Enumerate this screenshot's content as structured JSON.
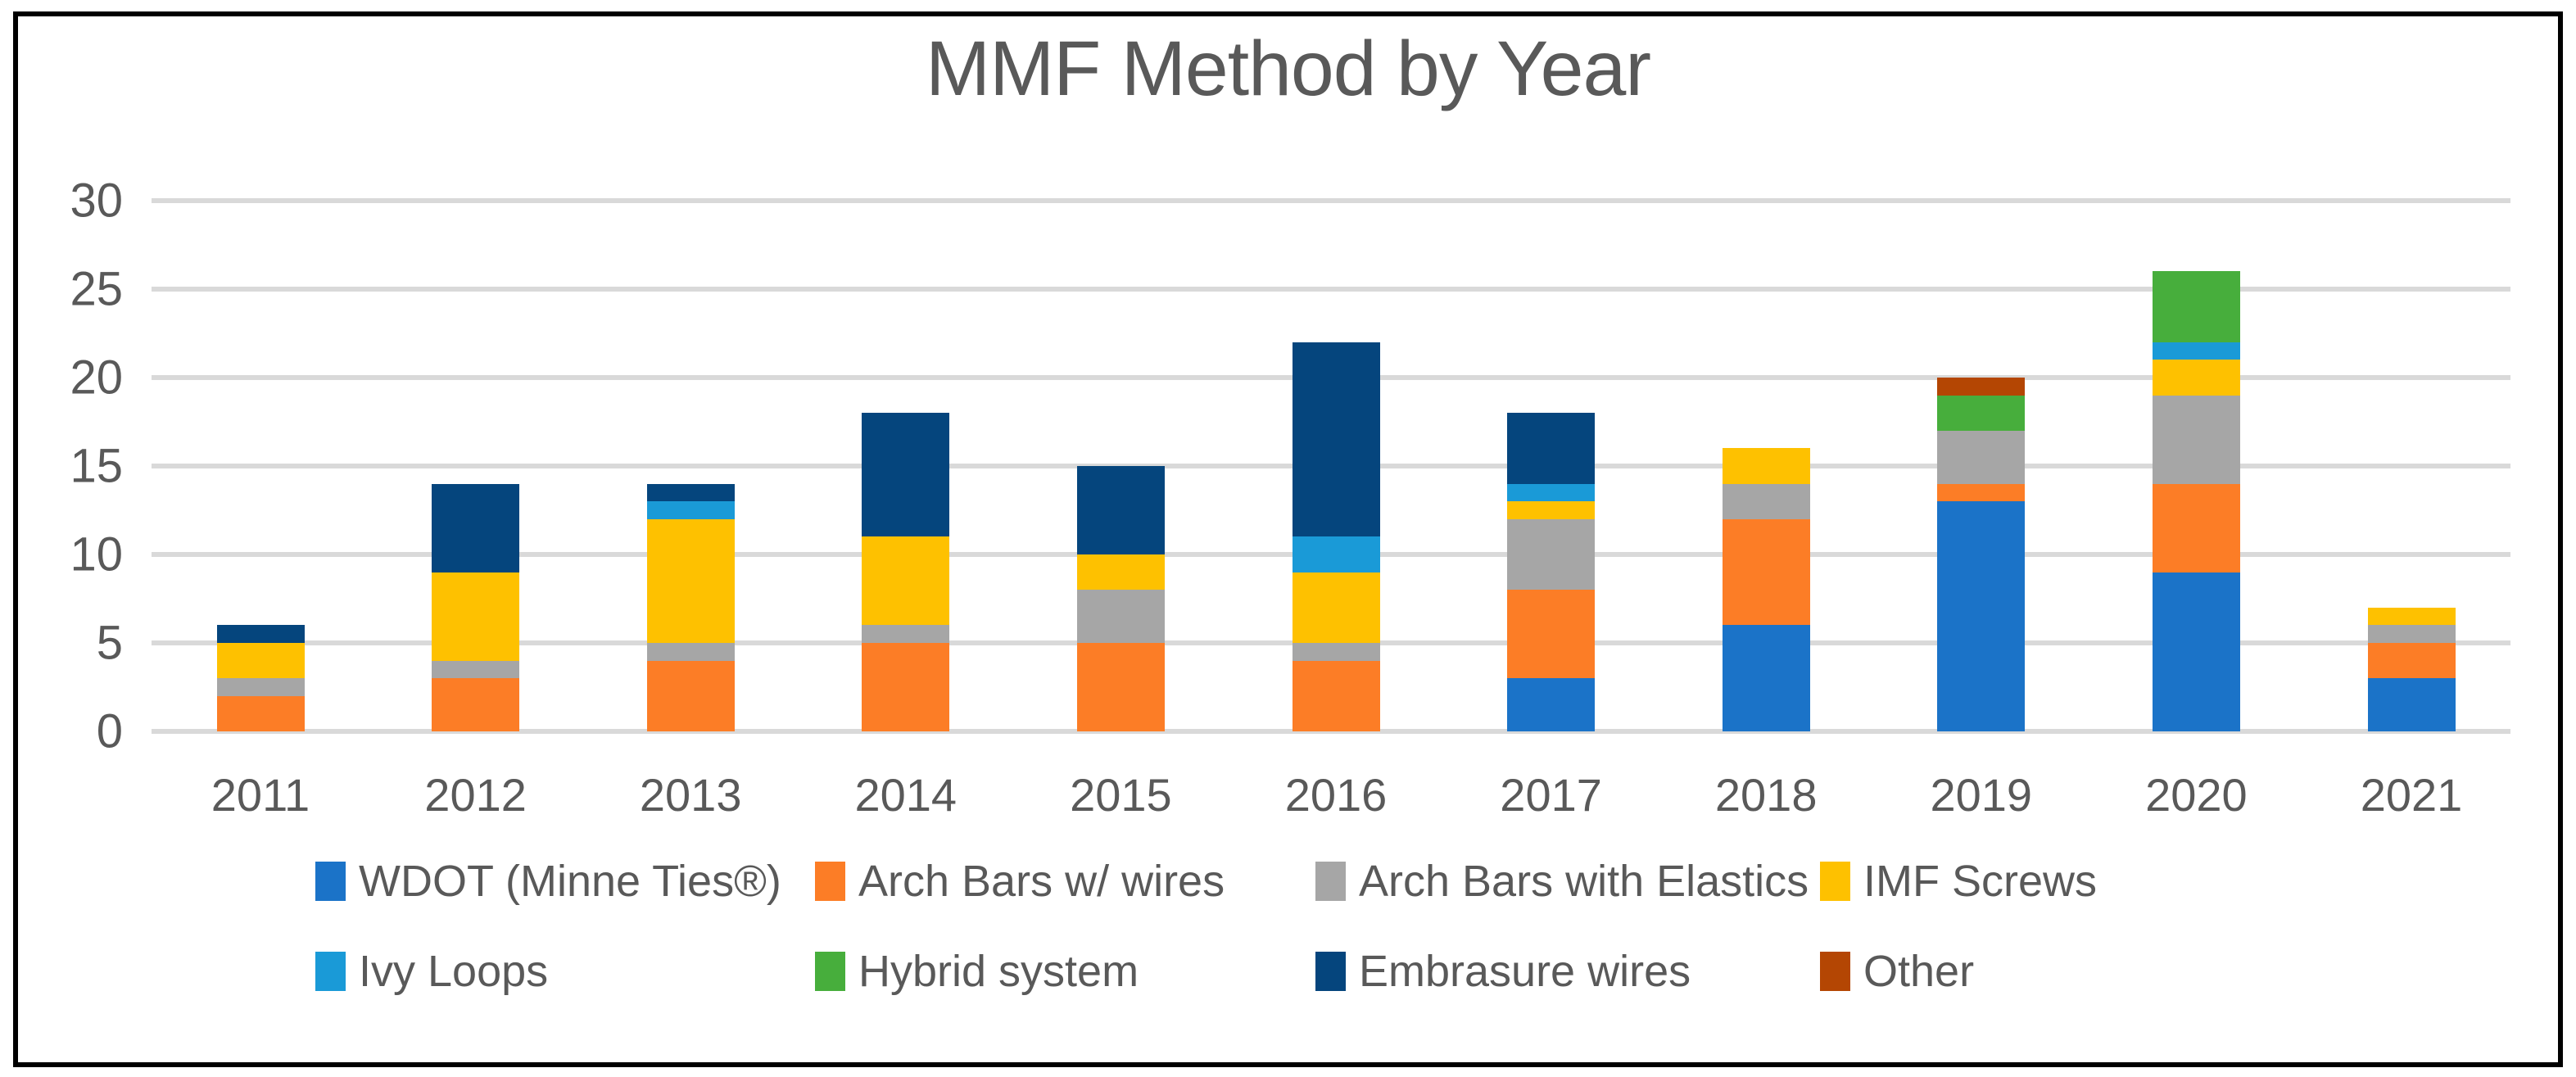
{
  "title": "MMF Method by Year",
  "chart_data": {
    "type": "bar",
    "stacked": true,
    "title": "MMF Method by Year",
    "categories": [
      "2011",
      "2012",
      "2013",
      "2014",
      "2015",
      "2016",
      "2017",
      "2018",
      "2019",
      "2020",
      "2021"
    ],
    "series": [
      {
        "name": "WDOT (Minne Ties®)",
        "color": "#1b73c8",
        "values": [
          0,
          0,
          0,
          0,
          0,
          0,
          3,
          6,
          13,
          9,
          3
        ]
      },
      {
        "name": "Arch Bars w/ wires",
        "color": "#fc7d26",
        "values": [
          2,
          3,
          4,
          5,
          5,
          4,
          5,
          6,
          1,
          5,
          2
        ]
      },
      {
        "name": "Arch Bars with Elastics",
        "color": "#a6a6a6",
        "values": [
          1,
          1,
          1,
          1,
          3,
          1,
          4,
          2,
          3,
          5,
          1
        ]
      },
      {
        "name": "IMF Screws",
        "color": "#fec100",
        "values": [
          2,
          5,
          7,
          5,
          2,
          4,
          1,
          2,
          0,
          2,
          1
        ]
      },
      {
        "name": "Ivy Loops",
        "color": "#1a9ad7",
        "values": [
          0,
          0,
          1,
          0,
          0,
          2,
          1,
          0,
          0,
          1,
          0
        ]
      },
      {
        "name": "Hybrid system",
        "color": "#47ae3c",
        "values": [
          0,
          0,
          0,
          0,
          0,
          0,
          0,
          0,
          2,
          4,
          0
        ]
      },
      {
        "name": "Embrasure wires",
        "color": "#05457d",
        "values": [
          1,
          5,
          1,
          7,
          5,
          11,
          4,
          0,
          0,
          0,
          0
        ]
      },
      {
        "name": "Other",
        "color": "#b44603",
        "values": [
          0,
          0,
          0,
          0,
          0,
          0,
          0,
          0,
          1,
          0,
          0
        ]
      }
    ],
    "totals": [
      6,
      14,
      14,
      18,
      15,
      22,
      18,
      16,
      20,
      26,
      7
    ],
    "ylim": [
      0,
      30
    ],
    "yticks": [
      0,
      5,
      10,
      15,
      20,
      25,
      30
    ],
    "grid": true,
    "gridline_color": "#d9d9d9",
    "text_color": "#595959",
    "legend_position": "bottom",
    "legend_rows": [
      [
        0,
        1,
        2,
        3
      ],
      [
        4,
        5,
        6,
        7
      ]
    ]
  }
}
